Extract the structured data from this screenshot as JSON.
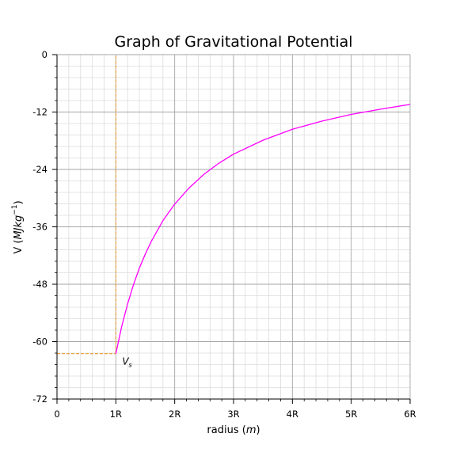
{
  "chart_data": {
    "type": "line",
    "title": "Graph of Gravitational Potential",
    "xlabel_text": "radius (",
    "xlabel_unit": "m",
    "xlabel_close": ")",
    "ylabel_text": "V (",
    "ylabel_unit": "MJkg",
    "ylabel_exp": "−1",
    "ylabel_close": ")",
    "xlim": [
      0,
      6
    ],
    "ylim": [
      -72,
      0
    ],
    "x_ticks": [
      {
        "value": 0,
        "label": "0"
      },
      {
        "value": 1,
        "label": "1R"
      },
      {
        "value": 2,
        "label": "2R"
      },
      {
        "value": 3,
        "label": "3R"
      },
      {
        "value": 4,
        "label": "4R"
      },
      {
        "value": 5,
        "label": "5R"
      },
      {
        "value": 6,
        "label": "6R"
      }
    ],
    "y_ticks": [
      {
        "value": 0,
        "label": "0"
      },
      {
        "value": -12,
        "label": "-12"
      },
      {
        "value": -24,
        "label": "-24"
      },
      {
        "value": -36,
        "label": "-36"
      },
      {
        "value": -48,
        "label": "-48"
      },
      {
        "value": -60,
        "label": "-60"
      },
      {
        "value": -72,
        "label": "-72"
      }
    ],
    "grid": true,
    "series": [
      {
        "color": "#ff00ff",
        "x": [
          1,
          1.1,
          1.2,
          1.3,
          1.4,
          1.5,
          1.6,
          1.8,
          2,
          2.25,
          2.5,
          2.75,
          3,
          3.5,
          4,
          4.5,
          5,
          5.5,
          6
        ],
        "y": [
          -62.5,
          -56.8,
          -52.1,
          -48.1,
          -44.6,
          -41.7,
          -39.1,
          -34.7,
          -31.25,
          -27.8,
          -25.0,
          -22.7,
          -20.8,
          -17.9,
          -15.6,
          -13.9,
          -12.5,
          -11.4,
          -10.4
        ]
      }
    ],
    "surface_point": {
      "x": 1,
      "y": -62.5,
      "label": "V",
      "label_sub": "s",
      "label_color": "#0000cc"
    },
    "guide_color": "#e8a33a"
  }
}
